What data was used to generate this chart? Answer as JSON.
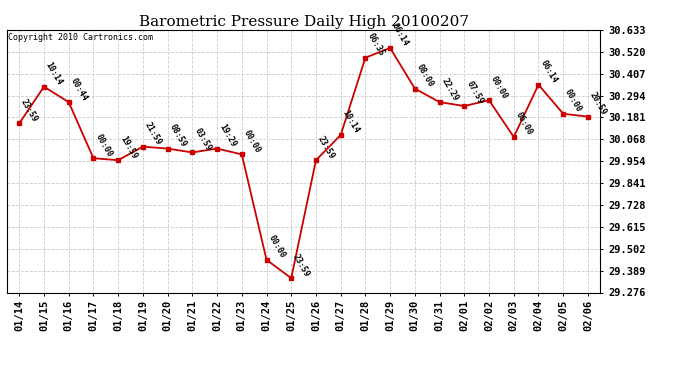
{
  "title": "Barometric Pressure Daily High 20100207",
  "copyright": "Copyright 2010 Cartronics.com",
  "x_labels": [
    "01/14",
    "01/15",
    "01/16",
    "01/17",
    "01/18",
    "01/19",
    "01/20",
    "01/21",
    "01/22",
    "01/23",
    "01/24",
    "01/25",
    "01/26",
    "01/27",
    "01/28",
    "01/29",
    "01/30",
    "01/31",
    "02/01",
    "02/02",
    "02/03",
    "02/04",
    "02/05",
    "02/06"
  ],
  "y_values": [
    30.15,
    30.34,
    30.26,
    29.97,
    29.96,
    30.03,
    30.02,
    30.0,
    30.02,
    29.99,
    29.445,
    29.35,
    29.96,
    30.09,
    30.49,
    30.54,
    30.33,
    30.26,
    30.24,
    30.27,
    30.08,
    30.35,
    30.2,
    30.185
  ],
  "time_labels": [
    "23:59",
    "10:14",
    "00:44",
    "00:00",
    "19:59",
    "21:59",
    "08:59",
    "03:59",
    "19:29",
    "00:00",
    "00:00",
    "23:59",
    "23:59",
    "10:14",
    "06:35",
    "06:14",
    "08:00",
    "22:29",
    "07:59",
    "00:00",
    "06:00",
    "06:14",
    "00:00",
    "20:59"
  ],
  "y_ticks": [
    29.276,
    29.389,
    29.502,
    29.615,
    29.728,
    29.841,
    29.954,
    30.068,
    30.181,
    30.294,
    30.407,
    30.52,
    30.633
  ],
  "ylim_lo": 29.276,
  "ylim_hi": 30.633,
  "line_color": "#CC0000",
  "bg_color": "#FFFFFF",
  "grid_color": "#CCCCCC",
  "title_fontsize": 11,
  "tick_fontsize": 7.5,
  "annot_fontsize": 6,
  "copyright_fontsize": 6
}
